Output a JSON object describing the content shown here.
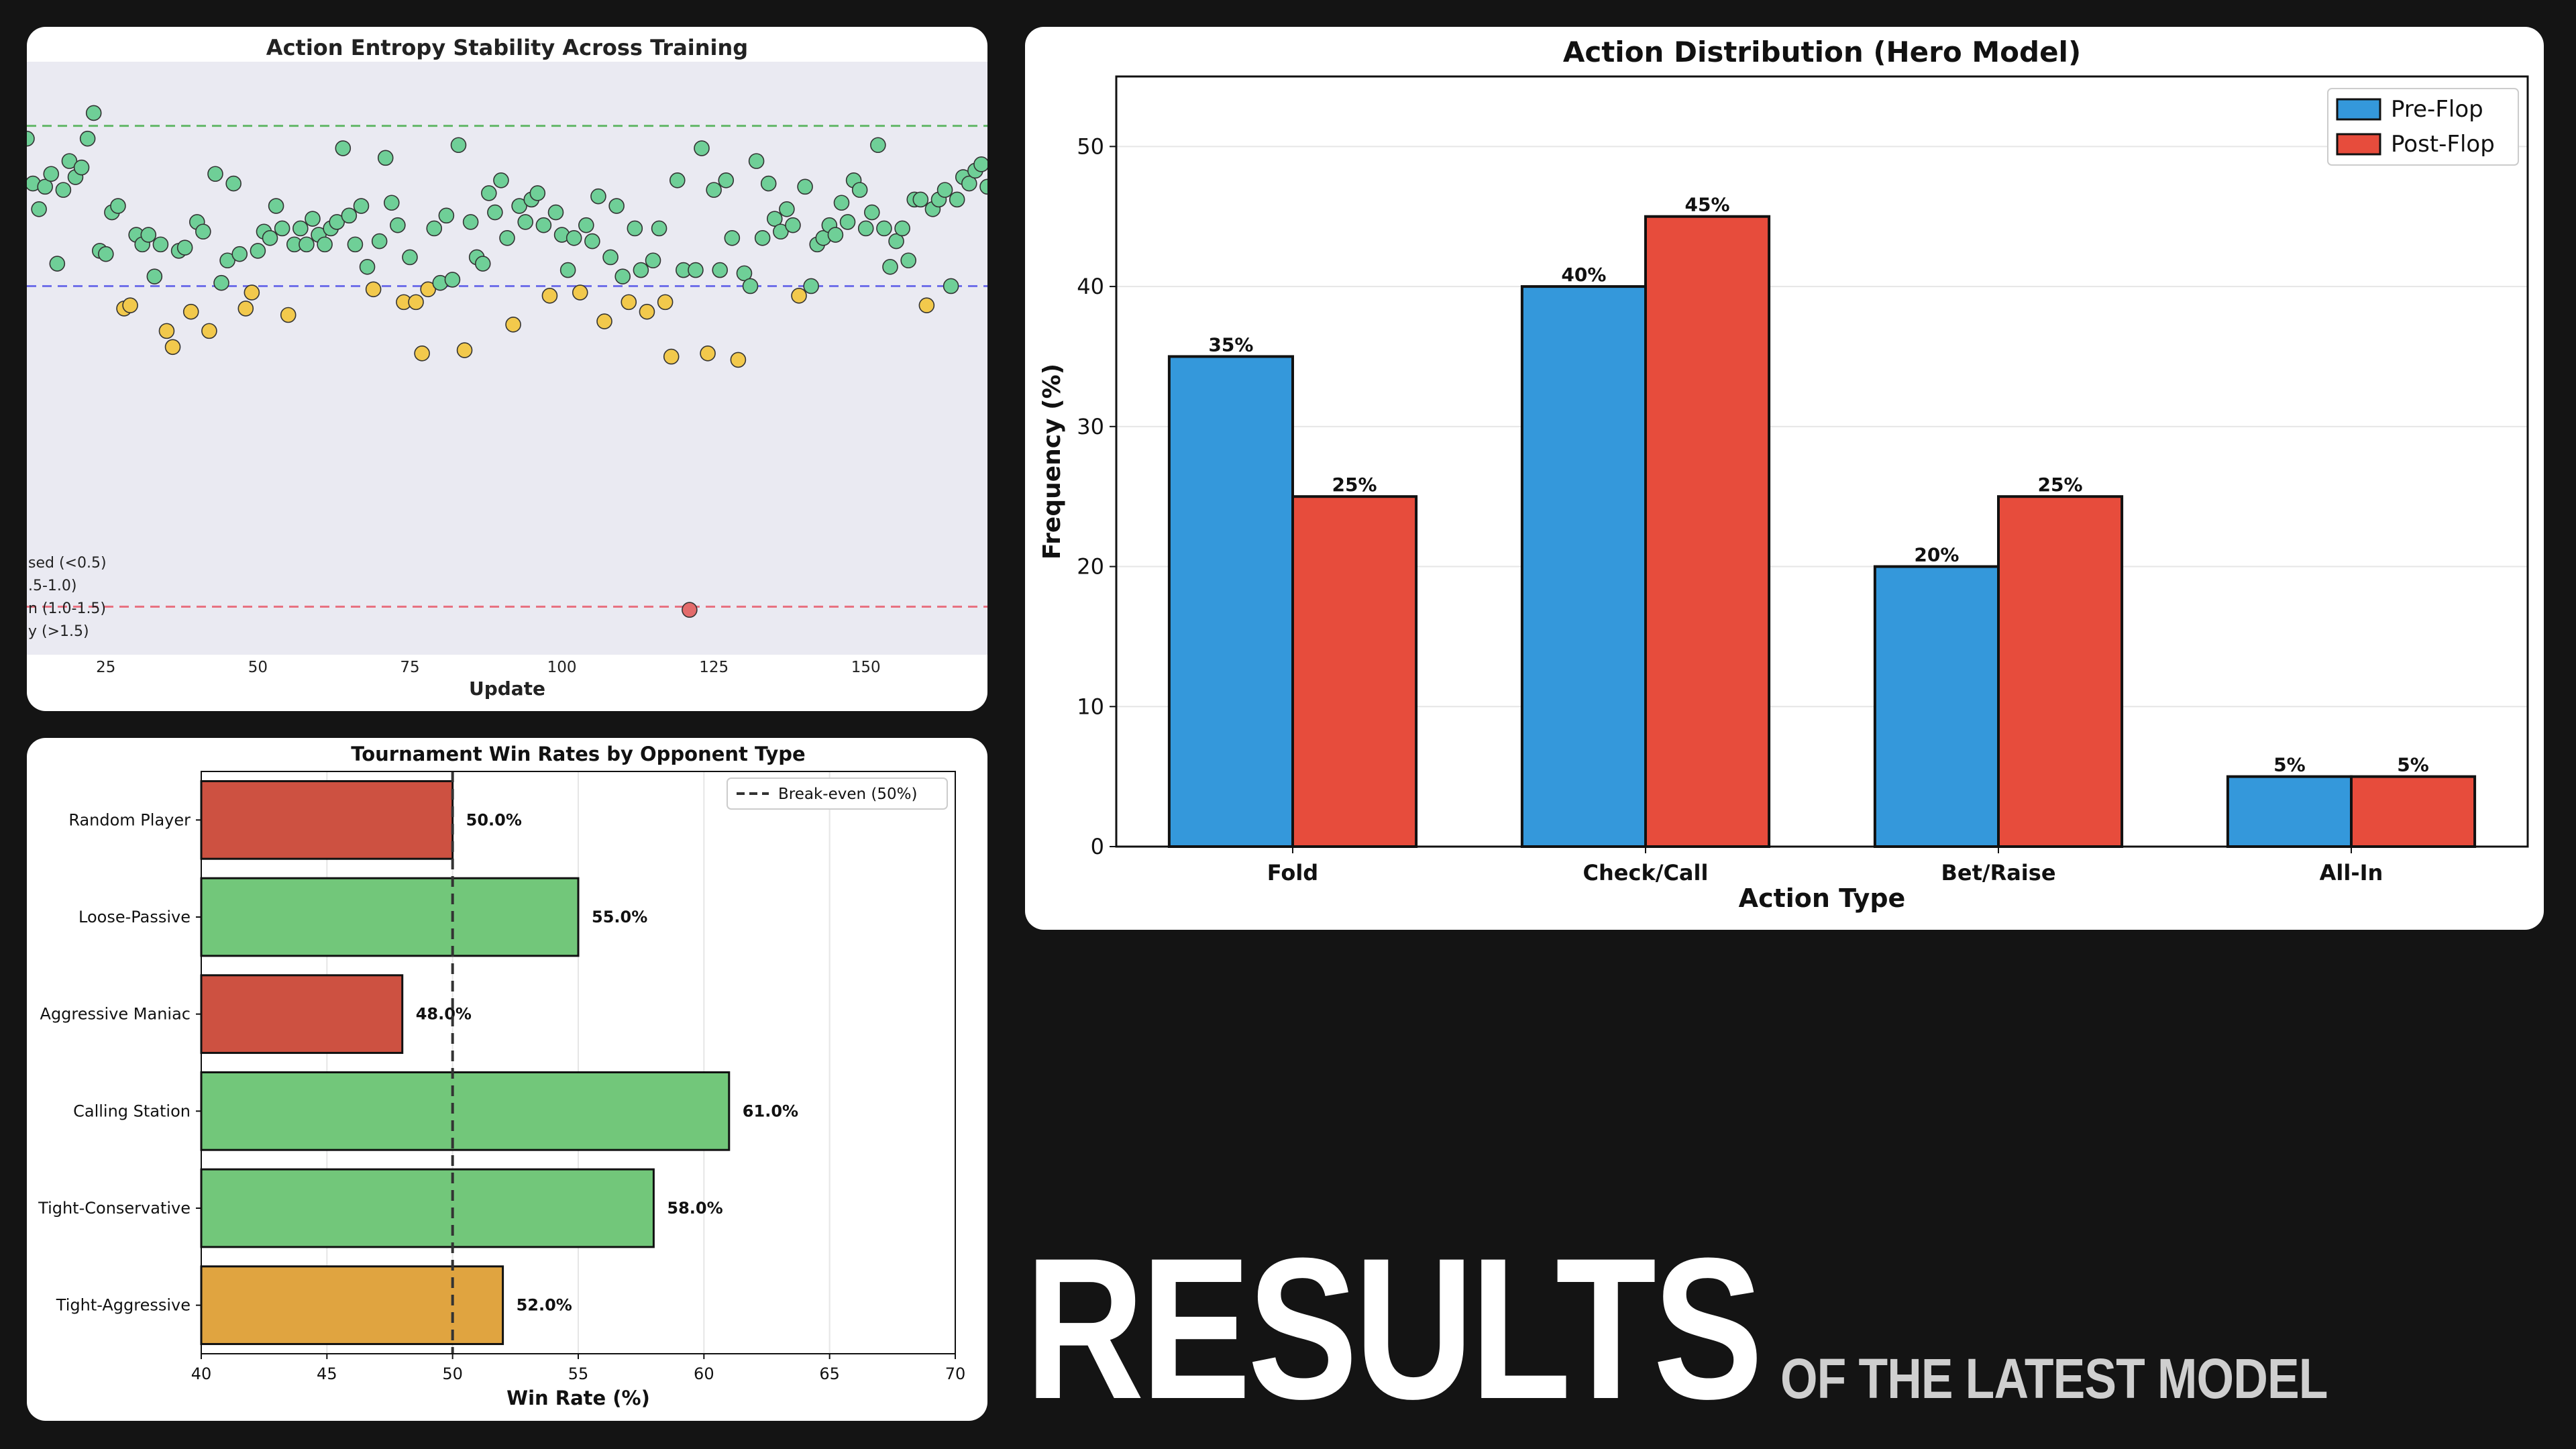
{
  "colors": {
    "card_bg": "#ffffff",
    "page_bg": "#141414",
    "green": "#72c77a",
    "red": "#cd5141",
    "orange": "#e0a440",
    "blue": "#3498db",
    "redbar": "#e74c3c",
    "scatter_green": "#6fcf97",
    "scatter_yellow": "#f2c94c",
    "scatter_red": "#e36b6b",
    "plot_bg": "#eaeaf2"
  },
  "headline": {
    "main": "RESULTS",
    "sub": "OF THE LATEST MODEL"
  },
  "charts": {
    "entropy": {
      "type": "scatter",
      "title": "Action Entropy Stability Across Training",
      "xlabel": "Update",
      "ylabel": "",
      "xlim": [
        12,
        170
      ],
      "ylim": [
        0.35,
        2.2
      ],
      "xticks": [
        25,
        50,
        75,
        100,
        125,
        150
      ],
      "reference_lines": [
        {
          "y": 2.0,
          "color": "#4caf50"
        },
        {
          "y": 1.5,
          "color": "#5b5be8"
        },
        {
          "y": 0.5,
          "color": "#e85b6b"
        }
      ],
      "legend_labels": [
        "sed (<0.5)",
        ".5-1.0)",
        "n (1.0-1.5)",
        "y (>1.5)"
      ],
      "points": [
        [
          12,
          1.96
        ],
        [
          13,
          1.82
        ],
        [
          14,
          1.74
        ],
        [
          15,
          1.81
        ],
        [
          16,
          1.85
        ],
        [
          17,
          1.57
        ],
        [
          18,
          1.8
        ],
        [
          19,
          1.89
        ],
        [
          20,
          1.84
        ],
        [
          21,
          1.87
        ],
        [
          22,
          1.96
        ],
        [
          23,
          2.04
        ],
        [
          24,
          1.61
        ],
        [
          25,
          1.6
        ],
        [
          26,
          1.73
        ],
        [
          27,
          1.75
        ],
        [
          28,
          1.43
        ],
        [
          29,
          1.44
        ],
        [
          30,
          1.66
        ],
        [
          31,
          1.63
        ],
        [
          32,
          1.66
        ],
        [
          33,
          1.53
        ],
        [
          34,
          1.63
        ],
        [
          35,
          1.36
        ],
        [
          36,
          1.31
        ],
        [
          37,
          1.61
        ],
        [
          38,
          1.62
        ],
        [
          39,
          1.42
        ],
        [
          40,
          1.7
        ],
        [
          41,
          1.67
        ],
        [
          42,
          1.36
        ],
        [
          43,
          1.85
        ],
        [
          44,
          1.51
        ],
        [
          45,
          1.58
        ],
        [
          46,
          1.82
        ],
        [
          47,
          1.6
        ],
        [
          48,
          1.43
        ],
        [
          49,
          1.48
        ],
        [
          50,
          1.61
        ],
        [
          51,
          1.67
        ],
        [
          52,
          1.65
        ],
        [
          53,
          1.75
        ],
        [
          54,
          1.68
        ],
        [
          55,
          1.41
        ],
        [
          56,
          1.63
        ],
        [
          57,
          1.68
        ],
        [
          58,
          1.63
        ],
        [
          59,
          1.71
        ],
        [
          60,
          1.66
        ],
        [
          61,
          1.63
        ],
        [
          62,
          1.68
        ],
        [
          63,
          1.7
        ],
        [
          64,
          1.93
        ],
        [
          65,
          1.72
        ],
        [
          66,
          1.63
        ],
        [
          67,
          1.75
        ],
        [
          68,
          1.56
        ],
        [
          69,
          1.49
        ],
        [
          70,
          1.64
        ],
        [
          71,
          1.9
        ],
        [
          72,
          1.76
        ],
        [
          73,
          1.69
        ],
        [
          74,
          1.45
        ],
        [
          75,
          1.59
        ],
        [
          76,
          1.45
        ],
        [
          77,
          1.29
        ],
        [
          78,
          1.49
        ],
        [
          79,
          1.68
        ],
        [
          80,
          1.51
        ],
        [
          81,
          1.72
        ],
        [
          82,
          1.52
        ],
        [
          83,
          1.94
        ],
        [
          84,
          1.3
        ],
        [
          85,
          1.7
        ],
        [
          86,
          1.59
        ],
        [
          87,
          1.57
        ],
        [
          88,
          1.79
        ],
        [
          89,
          1.73
        ],
        [
          90,
          1.83
        ],
        [
          91,
          1.65
        ],
        [
          92,
          1.38
        ],
        [
          93,
          1.75
        ],
        [
          94,
          1.7
        ],
        [
          95,
          1.77
        ],
        [
          96,
          1.79
        ],
        [
          97,
          1.69
        ],
        [
          98,
          1.47
        ],
        [
          99,
          1.73
        ],
        [
          100,
          1.66
        ],
        [
          101,
          1.55
        ],
        [
          102,
          1.65
        ],
        [
          103,
          1.48
        ],
        [
          104,
          1.69
        ],
        [
          105,
          1.64
        ],
        [
          106,
          1.78
        ],
        [
          107,
          1.39
        ],
        [
          108,
          1.59
        ],
        [
          109,
          1.75
        ],
        [
          110,
          1.53
        ],
        [
          111,
          1.45
        ],
        [
          112,
          1.68
        ],
        [
          113,
          1.55
        ],
        [
          114,
          1.42
        ],
        [
          115,
          1.58
        ],
        [
          116,
          1.68
        ],
        [
          117,
          1.45
        ],
        [
          118,
          1.28
        ],
        [
          119,
          1.83
        ],
        [
          120,
          1.55
        ],
        [
          121,
          0.49
        ],
        [
          122,
          1.55
        ],
        [
          123,
          1.93
        ],
        [
          124,
          1.29
        ],
        [
          125,
          1.8
        ],
        [
          126,
          1.55
        ],
        [
          127,
          1.83
        ],
        [
          128,
          1.65
        ],
        [
          129,
          1.27
        ],
        [
          130,
          1.54
        ],
        [
          131,
          1.5
        ],
        [
          132,
          1.89
        ],
        [
          133,
          1.65
        ],
        [
          134,
          1.82
        ],
        [
          135,
          1.71
        ],
        [
          136,
          1.67
        ],
        [
          137,
          1.74
        ],
        [
          138,
          1.69
        ],
        [
          139,
          1.47
        ],
        [
          140,
          1.81
        ],
        [
          141,
          1.5
        ],
        [
          142,
          1.63
        ],
        [
          143,
          1.65
        ],
        [
          144,
          1.69
        ],
        [
          145,
          1.66
        ],
        [
          146,
          1.76
        ],
        [
          147,
          1.7
        ],
        [
          148,
          1.83
        ],
        [
          149,
          1.8
        ],
        [
          150,
          1.68
        ],
        [
          151,
          1.73
        ],
        [
          152,
          1.94
        ],
        [
          153,
          1.68
        ],
        [
          154,
          1.56
        ],
        [
          155,
          1.64
        ],
        [
          156,
          1.68
        ],
        [
          157,
          1.58
        ],
        [
          158,
          1.77
        ],
        [
          159,
          1.77
        ],
        [
          160,
          1.44
        ],
        [
          161,
          1.74
        ],
        [
          162,
          1.77
        ],
        [
          163,
          1.8
        ],
        [
          164,
          1.5
        ],
        [
          165,
          1.77
        ],
        [
          166,
          1.84
        ],
        [
          167,
          1.82
        ],
        [
          168,
          1.86
        ],
        [
          169,
          1.88
        ],
        [
          170,
          1.81
        ]
      ]
    },
    "winrate": {
      "type": "bar",
      "orientation": "horizontal",
      "title": "Tournament Win Rates by Opponent Type",
      "xlabel": "Win Rate (%)",
      "xlim": [
        40,
        70
      ],
      "xticks": [
        40,
        45,
        50,
        55,
        60,
        65,
        70
      ],
      "breakeven": 50,
      "legend_label": "Break-even (50%)",
      "categories": [
        "Random Player",
        "Loose-Passive",
        "Aggressive Maniac",
        "Calling Station",
        "Tight-Conservative",
        "Tight-Aggressive"
      ],
      "values": [
        50.0,
        55.0,
        48.0,
        61.0,
        58.0,
        52.0
      ],
      "value_labels": [
        "50.0%",
        "55.0%",
        "48.0%",
        "61.0%",
        "58.0%",
        "52.0%"
      ],
      "bar_colors": [
        "#cd5141",
        "#72c77a",
        "#cd5141",
        "#72c77a",
        "#72c77a",
        "#e0a440"
      ]
    },
    "actions": {
      "type": "bar",
      "title": "Action Distribution (Hero Model)",
      "xlabel": "Action Type",
      "ylabel": "Frequency (%)",
      "ylim": [
        0,
        55
      ],
      "yticks": [
        0,
        10,
        20,
        30,
        40,
        50
      ],
      "categories": [
        "Fold",
        "Check/Call",
        "Bet/Raise",
        "All-In"
      ],
      "series": [
        {
          "name": "Pre-Flop",
          "values": [
            35,
            40,
            20,
            5
          ],
          "labels": [
            "35%",
            "40%",
            "20%",
            "5%"
          ],
          "color": "#3498db"
        },
        {
          "name": "Post-Flop",
          "values": [
            25,
            45,
            25,
            5
          ],
          "labels": [
            "25%",
            "45%",
            "25%",
            "5%"
          ],
          "color": "#e74c3c"
        }
      ],
      "legend_position": "top-right"
    }
  }
}
